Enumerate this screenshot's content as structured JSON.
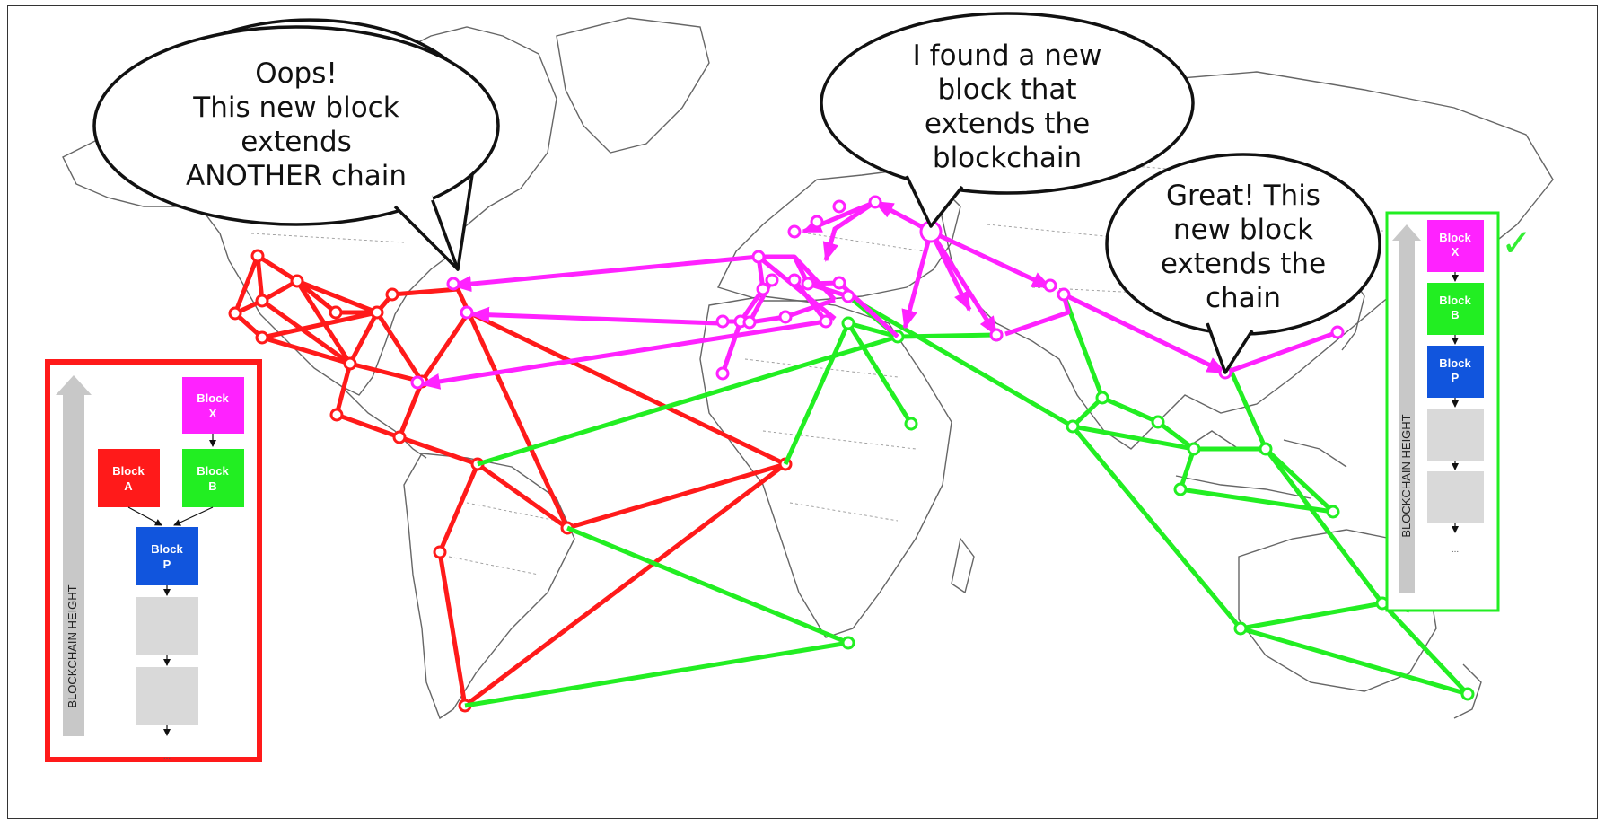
{
  "bubbles": {
    "left": [
      "Oops!",
      "This new block",
      "extends",
      "ANOTHER chain"
    ],
    "center": [
      "I found a new",
      "block that",
      "extends the",
      "blockchain"
    ],
    "right": [
      "Great! This",
      "new block",
      "extends the",
      "chain"
    ]
  },
  "left_panel": {
    "axis_label": "BLOCKCHAIN HEIGHT",
    "blocks": {
      "x": [
        "Block",
        "X"
      ],
      "a": [
        "Block",
        "A"
      ],
      "b": [
        "Block",
        "B"
      ],
      "p": [
        "Block",
        "P"
      ]
    }
  },
  "right_panel": {
    "axis_label": "BLOCKCHAIN HEIGHT",
    "blocks": {
      "x": [
        "Block",
        "X"
      ],
      "b": [
        "Block",
        "B"
      ],
      "p": [
        "Block",
        "P"
      ]
    },
    "status_icon": "check-icon",
    "status_glyph": "✓"
  },
  "colors": {
    "chain_red": "#ff1a1a",
    "chain_green": "#22ee22",
    "chain_magenta": "#ff22ff",
    "block_blue": "#1155dd",
    "block_empty": "#d9d9d9",
    "map_border": "#777777"
  }
}
